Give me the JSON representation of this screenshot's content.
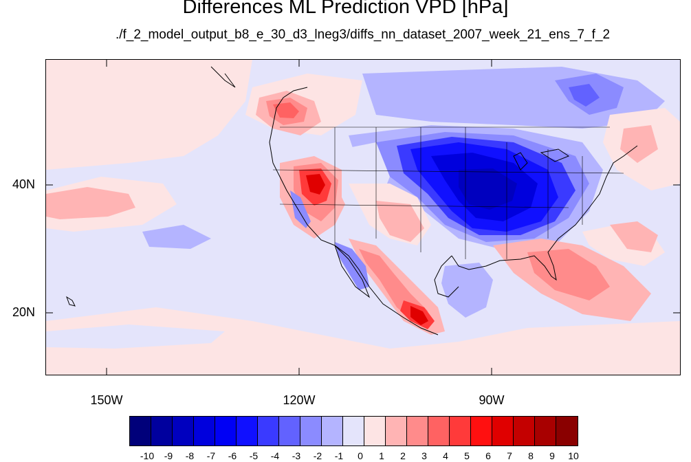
{
  "header": {
    "title": "Differences ML Prediction VPD [hPa]",
    "subtitle": "./f_2_model_output_b8_e_30_d3_lneg3/diffs_nn_dataset_2007_week_21_ens_7_f_2"
  },
  "axes": {
    "y_labels": [
      "40N",
      "20N"
    ],
    "x_labels": [
      "150W",
      "120W",
      "90W"
    ]
  },
  "colorbar": {
    "ticks": [
      "-10",
      "-9",
      "-8",
      "-7",
      "-6",
      "-5",
      "-4",
      "-3",
      "-2",
      "-1",
      "0",
      "1",
      "2",
      "3",
      "4",
      "5",
      "6",
      "7",
      "8",
      "9",
      "10"
    ],
    "colors": [
      "#00007a",
      "#00009e",
      "#0000bf",
      "#0000dd",
      "#0000f5",
      "#1010ff",
      "#3a3aff",
      "#6262ff",
      "#8b8bff",
      "#b4b4ff",
      "#e4e4fb",
      "#fde4e4",
      "#ffb4b4",
      "#ff8b8b",
      "#ff6262",
      "#ff3a3a",
      "#ff1010",
      "#e00000",
      "#c40000",
      "#a80000",
      "#8a0000"
    ]
  }
}
